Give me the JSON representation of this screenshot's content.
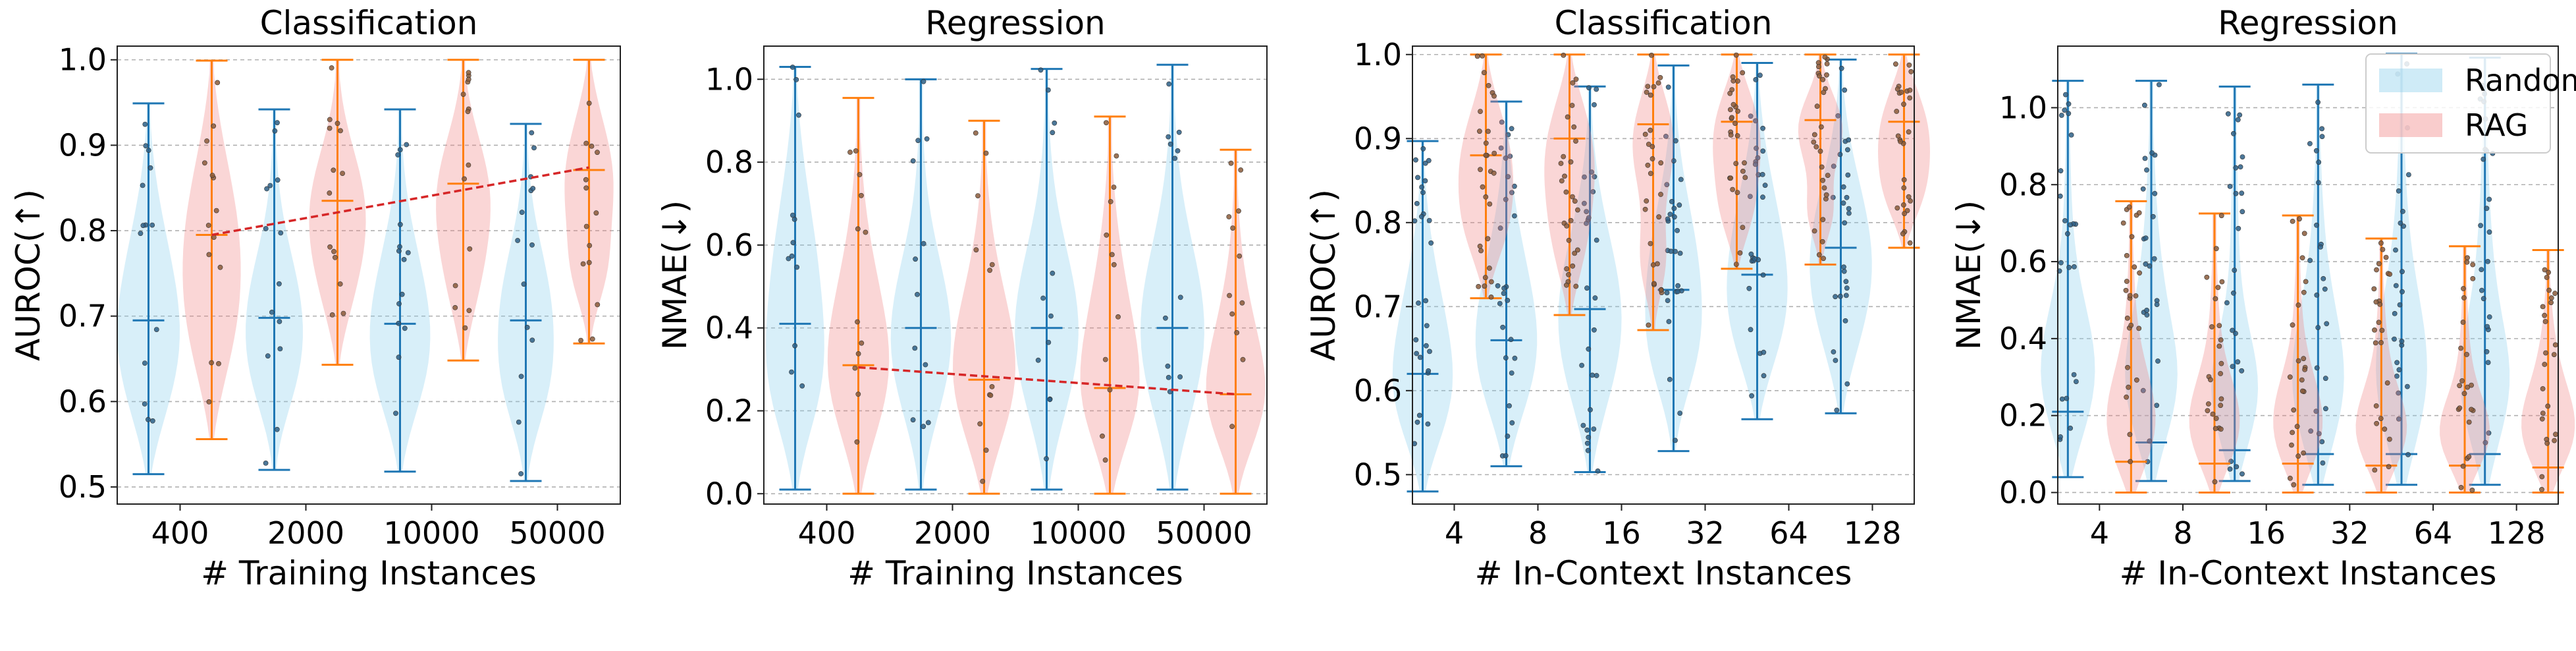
{
  "colors": {
    "random_fill": "#87CEEB",
    "random_line": "#1f77b4",
    "rag_fill": "#F08080",
    "rag_line": "#ff7f0e",
    "trend": "#d62728",
    "grid": "#b0b0b0"
  },
  "legend": {
    "random": "Random",
    "rag": "RAG"
  },
  "chart_data": [
    {
      "type": "violin",
      "title": "Classification",
      "xlabel": "# Training Instances",
      "ylabel": "AUROC(↑)",
      "categories": [
        "400",
        "2000",
        "10000",
        "50000"
      ],
      "ylim": [
        0.48,
        1.016
      ],
      "yticks": [
        0.5,
        0.6,
        0.7,
        0.8,
        0.9,
        1.0
      ],
      "ytick_labels": [
        "0.5",
        "0.6",
        "0.7",
        "0.8",
        "0.9",
        "1.0"
      ],
      "legend": false,
      "series": [
        {
          "name": "Random",
          "key": "random",
          "min": [
            0.515,
            0.52,
            0.518,
            0.507
          ],
          "median": [
            0.695,
            0.698,
            0.691,
            0.695
          ],
          "max": [
            0.949,
            0.942,
            0.942,
            0.925
          ],
          "points": 14
        },
        {
          "name": "RAG",
          "key": "rag",
          "min": [
            0.556,
            0.643,
            0.648,
            0.668
          ],
          "median": [
            0.795,
            0.835,
            0.855,
            0.871
          ],
          "max": [
            0.999,
            1.0,
            1.0,
            1.0
          ],
          "points": 14
        }
      ],
      "trend": {
        "series": "RAG",
        "from": 0,
        "to": 3,
        "values": [
          0.795,
          0.874
        ]
      }
    },
    {
      "type": "violin",
      "title": "Regression",
      "xlabel": "# Training Instances",
      "ylabel": "NMAE(↓)",
      "categories": [
        "400",
        "2000",
        "10000",
        "50000"
      ],
      "ylim": [
        -0.025,
        1.08
      ],
      "yticks": [
        0.0,
        0.2,
        0.4,
        0.6,
        0.8,
        1.0
      ],
      "ytick_labels": [
        "0.0",
        "0.2",
        "0.4",
        "0.6",
        "0.8",
        "1.0"
      ],
      "legend": false,
      "series": [
        {
          "name": "Random",
          "key": "random",
          "min": [
            0.01,
            0.01,
            0.01,
            0.01
          ],
          "median": [
            0.41,
            0.4,
            0.4,
            0.4
          ],
          "max": [
            1.03,
            1.0,
            1.025,
            1.035
          ],
          "points": 12
        },
        {
          "name": "RAG",
          "key": "rag",
          "min": [
            0.0,
            0.0,
            0.0,
            0.0
          ],
          "median": [
            0.31,
            0.275,
            0.255,
            0.24
          ],
          "max": [
            0.955,
            0.9,
            0.91,
            0.83
          ],
          "points": 12
        }
      ],
      "trend": {
        "series": "RAG",
        "from": 0,
        "to": 3,
        "values": [
          0.305,
          0.24
        ]
      }
    },
    {
      "type": "violin",
      "title": "Classification",
      "xlabel": "# In-Context Instances",
      "ylabel": "AUROC(↑)",
      "categories": [
        "4",
        "8",
        "16",
        "32",
        "64",
        "128"
      ],
      "ylim": [
        0.465,
        1.01
      ],
      "yticks": [
        0.5,
        0.6,
        0.7,
        0.8,
        0.9,
        1.0
      ],
      "ytick_labels": [
        "0.5",
        "0.6",
        "0.7",
        "0.8",
        "0.9",
        "1.0"
      ],
      "legend": false,
      "series": [
        {
          "name": "Random",
          "key": "random",
          "min": [
            0.48,
            0.51,
            0.503,
            0.528,
            0.566,
            0.573
          ],
          "median": [
            0.62,
            0.66,
            0.697,
            0.72,
            0.738,
            0.77
          ],
          "max": [
            0.897,
            0.944,
            0.962,
            0.987,
            0.99,
            0.994
          ],
          "points": 28
        },
        {
          "name": "RAG",
          "key": "rag",
          "min": [
            0.71,
            0.69,
            0.672,
            0.745,
            0.75,
            0.77
          ],
          "median": [
            0.88,
            0.9,
            0.917,
            0.92,
            0.922,
            0.92
          ],
          "max": [
            1.0,
            1.0,
            1.0,
            1.0,
            1.0,
            1.0
          ],
          "points": 28
        }
      ]
    },
    {
      "type": "violin",
      "title": "Regression",
      "xlabel": "# In-Context Instances",
      "ylabel": "NMAE(↓)",
      "categories": [
        "4",
        "8",
        "16",
        "32",
        "64",
        "128"
      ],
      "ylim": [
        -0.03,
        1.16
      ],
      "yticks": [
        0.0,
        0.2,
        0.4,
        0.6,
        0.8,
        1.0
      ],
      "ytick_labels": [
        "0.0",
        "0.2",
        "0.4",
        "0.6",
        "0.8",
        "1.0"
      ],
      "legend": true,
      "legend_loc": "upper right",
      "series": [
        {
          "name": "Random",
          "key": "random",
          "min": [
            0.04,
            0.03,
            0.03,
            0.02,
            0.02,
            0.02
          ],
          "median": [
            0.21,
            0.13,
            0.11,
            0.1,
            0.1,
            0.1
          ],
          "max": [
            1.07,
            1.07,
            1.055,
            1.06,
            1.14,
            1.13
          ],
          "points": 24
        },
        {
          "name": "RAG",
          "key": "rag",
          "min": [
            0.0,
            0.0,
            0.0,
            0.0,
            0.0,
            0.0
          ],
          "median": [
            0.08,
            0.075,
            0.075,
            0.07,
            0.07,
            0.065
          ],
          "max": [
            0.757,
            0.725,
            0.72,
            0.66,
            0.64,
            0.63
          ],
          "points": 24
        }
      ]
    }
  ]
}
